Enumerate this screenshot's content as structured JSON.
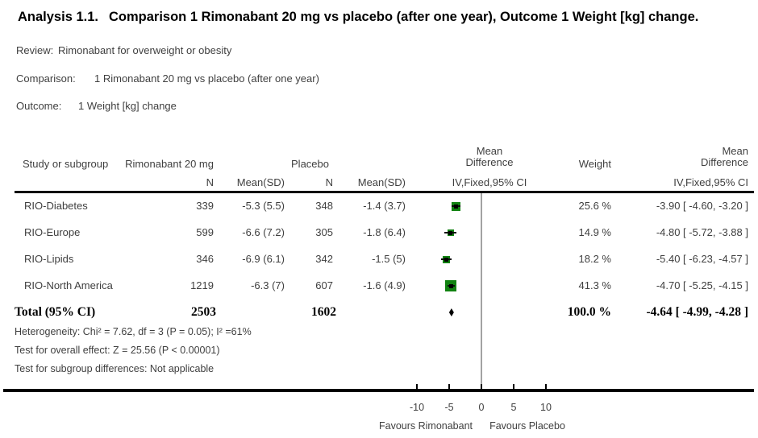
{
  "title": {
    "prefix": "Analysis 1.1.",
    "rest": "Comparison 1 Rimonabant 20 mg vs placebo (after one year), Outcome 1 Weight [kg] change."
  },
  "meta": {
    "review_label": "Review:",
    "review_value": "Rimonabant for overweight or obesity",
    "comparison_label": "Comparison:",
    "comparison_value": "1 Rimonabant 20 mg vs placebo (after one year)",
    "outcome_label": "Outcome:",
    "outcome_value": "1 Weight [kg] change"
  },
  "table_header": {
    "study": "Study or subgroup",
    "treatment_group": "Rimonabant 20 mg",
    "control_group": "Placebo",
    "n": "N",
    "mean_sd": "Mean(SD)",
    "effect_title_line1": "Mean",
    "effect_title_line2": "Difference",
    "effect_method": "IV,Fixed,95% CI",
    "weight": "Weight"
  },
  "chart_data": {
    "type": "forest",
    "effect_measure": "Mean Difference IV,Fixed,95% CI",
    "axis_ticks": [
      -10,
      -5,
      0,
      5,
      10
    ],
    "axis_range": [
      -10,
      10
    ],
    "zero_line": 0,
    "favours_left": "Favours Rimonabant",
    "favours_right": "Favours Placebo",
    "studies": [
      {
        "name": "RIO-Diabetes",
        "treatment_n": "339",
        "treatment_mean_sd": "-5.3 (5.5)",
        "placebo_n": "348",
        "placebo_mean_sd": "-1.4 (3.7)",
        "weight": "25.6 %",
        "weight_pct": 25.6,
        "md": -3.9,
        "ci_low": -4.6,
        "ci_high": -3.2,
        "md_label": "-3.90 [ -4.60, -3.20 ]"
      },
      {
        "name": "RIO-Europe",
        "treatment_n": "599",
        "treatment_mean_sd": "-6.6 (7.2)",
        "placebo_n": "305",
        "placebo_mean_sd": "-1.8 (6.4)",
        "weight": "14.9 %",
        "weight_pct": 14.9,
        "md": -4.8,
        "ci_low": -5.72,
        "ci_high": -3.88,
        "md_label": "-4.80 [ -5.72, -3.88 ]"
      },
      {
        "name": "RIO-Lipids",
        "treatment_n": "346",
        "treatment_mean_sd": "-6.9 (6.1)",
        "placebo_n": "342",
        "placebo_mean_sd": "-1.5 (5)",
        "weight": "18.2 %",
        "weight_pct": 18.2,
        "md": -5.4,
        "ci_low": -6.23,
        "ci_high": -4.57,
        "md_label": "-5.40 [ -6.23, -4.57 ]"
      },
      {
        "name": "RIO-North America",
        "treatment_n": "1219",
        "treatment_mean_sd": "-6.3 (7)",
        "placebo_n": "607",
        "placebo_mean_sd": "-1.6 (4.9)",
        "weight": "41.3 %",
        "weight_pct": 41.3,
        "md": -4.7,
        "ci_low": -5.25,
        "ci_high": -4.15,
        "md_label": "-4.70 [ -5.25, -4.15 ]"
      }
    ],
    "total": {
      "label": "Total (95% CI)",
      "treatment_n": "2503",
      "placebo_n": "1602",
      "weight": "100.0 %",
      "md": -4.64,
      "ci_low": -4.99,
      "ci_high": -4.28,
      "md_label": "-4.64 [ -4.99, -4.28 ]"
    },
    "footnotes": {
      "heterogeneity": "Heterogeneity: Chi² = 7.62, df = 3 (P = 0.05); I² =61%",
      "overall_effect": "Test for overall effect: Z = 25.56 (P < 0.00001)",
      "subgroup_differences": "Test for subgroup differences: Not applicable"
    }
  },
  "colors": {
    "square_green": "#118211",
    "marker_black": "#000000",
    "zero_line_gray": "#a3a3a3",
    "text_gray": "#3f3f3f",
    "rule_black": "#000000"
  }
}
